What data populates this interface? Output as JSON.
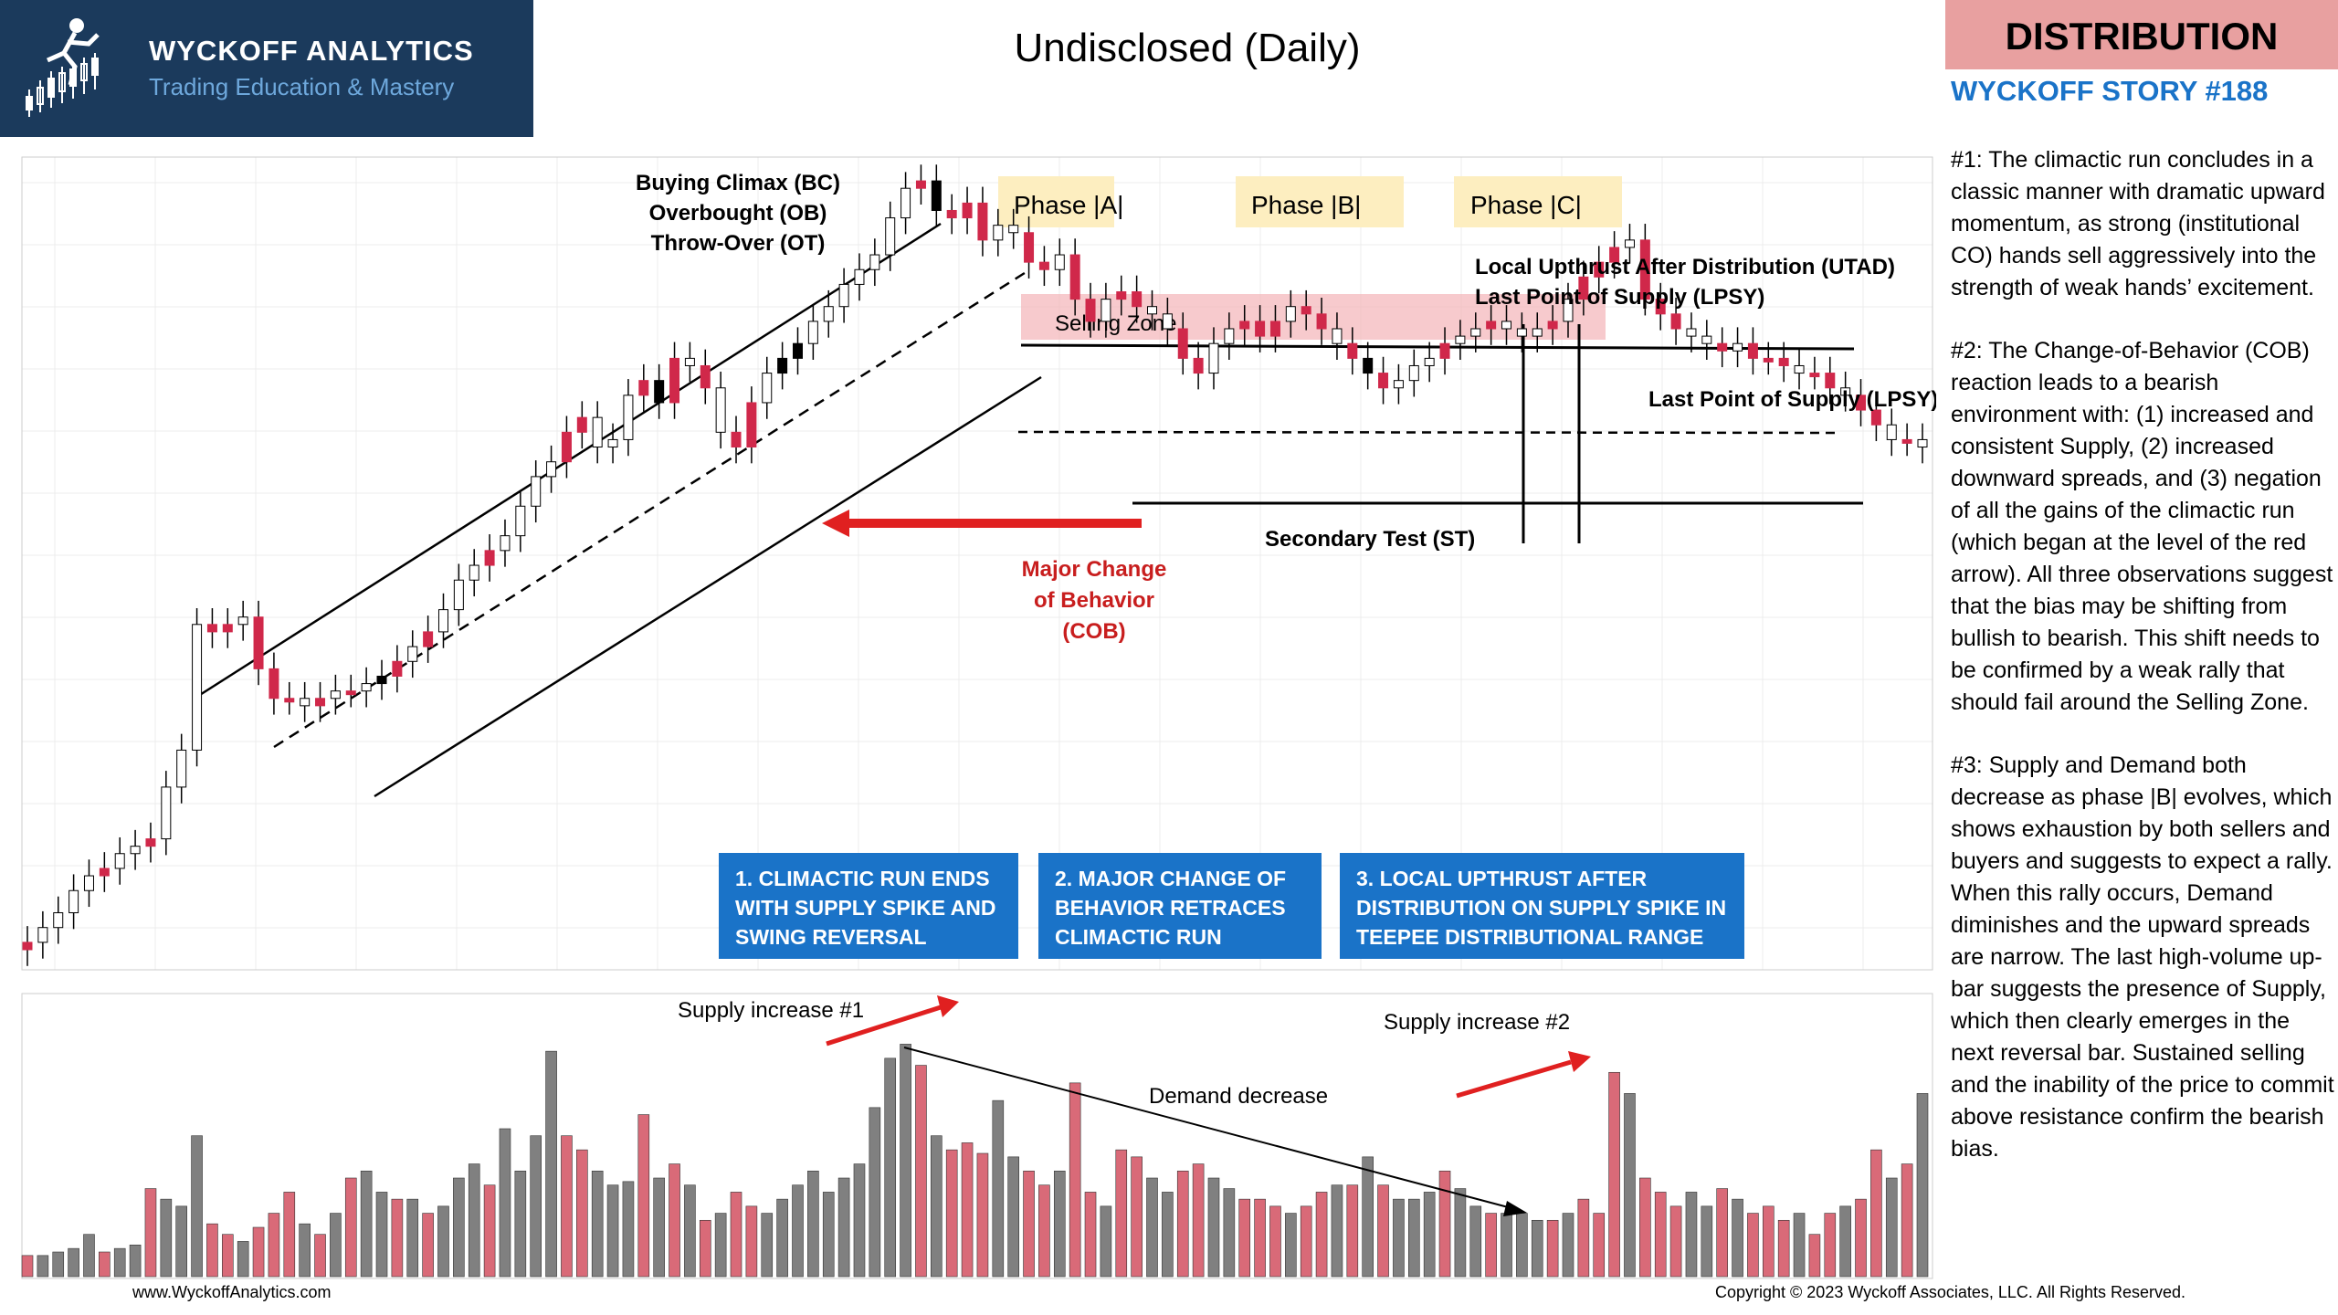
{
  "header": {
    "brand_name": "WYCKOFF ANALYTICS",
    "brand_tagline": "Trading Education & Mastery",
    "chart_title": "Undisclosed (Daily)",
    "badge": "DISTRIBUTION",
    "story_number": "WYCKOFF STORY #188"
  },
  "commentary": [
    "#1: The climactic run concludes in a classic manner with dramatic upward momentum, as strong (institutional CO) hands sell aggressively into the strength of weak hands’ excitement.",
    "#2: The Change-of-Behavior (COB) reaction leads to a bearish environment with: (1) increased and consistent Supply, (2) increased downward spreads, and (3) negation of all the gains of the climactic run (which began at the level of the red arrow). All three observations suggest that the bias may be shifting from bullish to bearish. This shift needs to be confirmed by a weak rally that should fail around the Selling Zone.",
    "#3: Supply and Demand both decrease as phase |B| evolves, which shows exhaustion by both sellers and buyers and suggests to expect a rally.  When this rally occurs, Demand diminishes and the upward spreads are narrow. The last high-volume up-bar suggests the presence of Supply, which then clearly emerges in the next reversal bar. Sustained selling and the inability of the price to commit above resistance confirm the bearish bias."
  ],
  "callouts": [
    "1. CLIMACTIC RUN ENDS WITH SUPPLY SPIKE AND SWING REVERSAL",
    "2. MAJOR CHANGE OF BEHAVIOR RETRACES CLIMACTIC RUN",
    "3. LOCAL UPTHRUST AFTER DISTRIBUTION ON SUPPLY SPIKE IN TEEPEE DISTRIBUTIONAL RANGE"
  ],
  "footer": {
    "website": "www.WyckoffAnalytics.com",
    "copyright": "Copyright © 2023 Wyckoff Associates, LLC. All Rights Reserved."
  },
  "colors": {
    "up_candle": "#ffffff",
    "down_candle": "#d0284a",
    "black_candle": "#000000",
    "volume_up": "#808080",
    "volume_down": "#d96a78",
    "selling_zone": "#f4b8bc",
    "phase_label_bg": "#fdeec0",
    "arrow_red": "#e02020",
    "callout_bg": "#1a73c8",
    "badge_bg": "#e8a0a0",
    "brand_bg": "#1b3a5c"
  },
  "chart_data": {
    "type": "candlestick",
    "title": "Undisclosed (Daily)",
    "phases": [
      "Phase |A|",
      "Phase |B|",
      "Phase |C|"
    ],
    "annotations": {
      "bc": [
        "Buying Climax (BC)",
        "Overbought (OB)",
        "Throw-Over (OT)"
      ],
      "selling_zone": "Selling Zone",
      "utad": [
        "Local Upthrust After Distribution (UTAD)",
        "Last Point of Supply (LPSY)"
      ],
      "lpsy": "Last Point of Supply (LPSY)",
      "st": "Secondary Test (ST)",
      "cob": [
        "Major Change",
        "of Behavior",
        "(COB)"
      ],
      "supply1": "Supply increase #1",
      "supply2": "Supply increase #2",
      "demand": "Demand decrease"
    },
    "price_closes": [
      1,
      3,
      5,
      8,
      10,
      11,
      13,
      14,
      15,
      22,
      27,
      44,
      43,
      44,
      45,
      38,
      34,
      34,
      33,
      34,
      35,
      35,
      36,
      37,
      39,
      41,
      43,
      46,
      50,
      52,
      54,
      56,
      60,
      64,
      66,
      70,
      72,
      68,
      69,
      75,
      77,
      74,
      80,
      79,
      76,
      70,
      68,
      74,
      78,
      80,
      82,
      85,
      87,
      90,
      92,
      94,
      99,
      103,
      104,
      100,
      99,
      101,
      96,
      98,
      97,
      93,
      92,
      94,
      88,
      85,
      88,
      89,
      87,
      86,
      84,
      80,
      78,
      82,
      84,
      85,
      83,
      85,
      87,
      86,
      84,
      82,
      80,
      78,
      76,
      77,
      79,
      80,
      82,
      83,
      84,
      85,
      84,
      83,
      84,
      85,
      88,
      91,
      93,
      95,
      96,
      88,
      86,
      84,
      83,
      82,
      81,
      82,
      80,
      80,
      79,
      78,
      78,
      76,
      75,
      73,
      71,
      69,
      69,
      68
    ],
    "candle_colors": [
      "dn",
      "up",
      "up",
      "up",
      "up",
      "dn",
      "up",
      "up",
      "dn",
      "up",
      "up",
      "up",
      "dn",
      "dn",
      "up",
      "dn",
      "dn",
      "dn",
      "up",
      "dn",
      "up",
      "dn",
      "up",
      "blk",
      "dn",
      "up",
      "dn",
      "up",
      "up",
      "up",
      "dn",
      "up",
      "up",
      "up",
      "up",
      "dn",
      "dn",
      "up",
      "up",
      "up",
      "dn",
      "blk",
      "dn",
      "up",
      "dn",
      "up",
      "dn",
      "dn",
      "up",
      "blk",
      "blk",
      "up",
      "up",
      "up",
      "up",
      "up",
      "up",
      "up",
      "dn",
      "blk",
      "dn",
      "dn",
      "dn",
      "up",
      "up",
      "dn",
      "dn",
      "up",
      "dn",
      "dn",
      "up",
      "dn",
      "dn",
      "up",
      "up",
      "dn",
      "dn",
      "up",
      "up",
      "dn",
      "dn",
      "dn",
      "up",
      "dn",
      "dn",
      "up",
      "dn",
      "blk",
      "dn",
      "up",
      "up",
      "up",
      "dn",
      "up",
      "up",
      "dn",
      "up",
      "up",
      "up",
      "dn",
      "up",
      "dn",
      "dn",
      "dn",
      "up",
      "dn",
      "dn",
      "dn",
      "up",
      "up",
      "dn",
      "up",
      "dn",
      "dn",
      "dn",
      "up",
      "dn",
      "dn",
      "up",
      "dn",
      "dn",
      "up",
      "dn",
      "up"
    ],
    "volume": [
      6,
      6,
      7,
      8,
      12,
      7,
      8,
      9,
      25,
      22,
      20,
      40,
      15,
      12,
      10,
      14,
      18,
      24,
      15,
      12,
      18,
      28,
      30,
      24,
      22,
      22,
      18,
      20,
      28,
      32,
      26,
      42,
      30,
      40,
      64,
      40,
      36,
      30,
      26,
      27,
      46,
      28,
      32,
      26,
      16,
      18,
      24,
      20,
      18,
      22,
      26,
      30,
      24,
      28,
      32,
      48,
      62,
      66,
      60,
      40,
      36,
      38,
      35,
      50,
      34,
      30,
      26,
      30,
      55,
      24,
      20,
      36,
      34,
      28,
      24,
      30,
      32,
      28,
      25,
      22,
      22,
      20,
      18,
      20,
      24,
      26,
      26,
      34,
      26,
      22,
      22,
      24,
      30,
      25,
      20,
      18,
      18,
      18,
      16,
      16,
      18,
      22,
      18,
      58,
      52,
      28,
      24,
      20,
      24,
      20,
      25,
      22,
      18,
      20,
      16,
      18,
      12,
      18,
      20,
      22,
      36,
      28,
      32,
      52
    ],
    "y_note": "price and volume in relative units (no axis labels shown)"
  }
}
